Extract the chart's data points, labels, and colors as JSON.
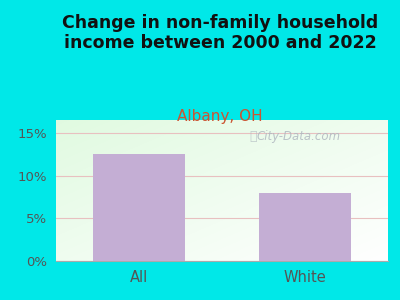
{
  "title": "Change in non-family household\nincome between 2000 and 2022",
  "subtitle": "Albany, OH",
  "categories": [
    "All",
    "White"
  ],
  "values": [
    12.5,
    8.0
  ],
  "bar_color": "#c4aed4",
  "title_fontsize": 12.5,
  "subtitle_fontsize": 11,
  "subtitle_color": "#cc5533",
  "title_color": "#111111",
  "yticks": [
    0,
    5,
    10,
    15
  ],
  "ytick_labels": [
    "0%",
    "5%",
    "10%",
    "15%"
  ],
  "ylim": [
    0,
    16.5
  ],
  "bg_outer": "#00e8e8",
  "watermark": "City-Data.com",
  "grid_color": "#e8c0c0",
  "tick_color": "#555555",
  "axis_color": "#aaaaaa"
}
